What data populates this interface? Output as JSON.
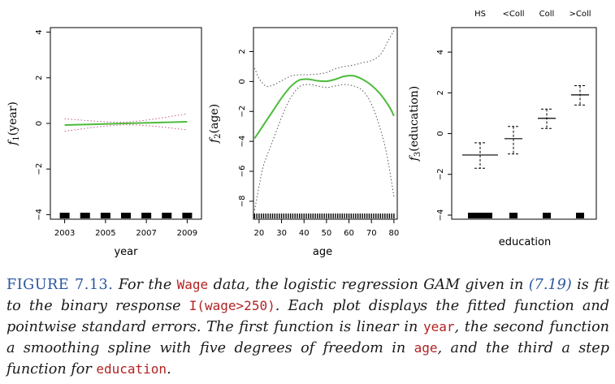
{
  "chart_data": [
    {
      "type": "line",
      "xlabel": "year",
      "ylabel": "f1(year)",
      "ylabel_base": "f",
      "ylabel_sub": "1",
      "ylabel_arg": "(year)",
      "xlim": [
        2002.3,
        2009.7
      ],
      "ylim": [
        -4.2,
        4.2
      ],
      "xticks": [
        2003,
        2005,
        2007,
        2009
      ],
      "xtick_labels": [
        "2003",
        "2005",
        "2007",
        "2009"
      ],
      "yticks": [
        -4,
        -2,
        0,
        2,
        4
      ],
      "ytick_labels": [
        "−4",
        "−2",
        "0",
        "2",
        "4"
      ],
      "fit": {
        "color": "#4cbb3a",
        "x": [
          2003,
          2009
        ],
        "y": [
          -0.07,
          0.07
        ]
      },
      "upper_band": {
        "x": [
          2003,
          2006,
          2009
        ],
        "y": [
          0.2,
          0.06,
          0.42
        ]
      },
      "lower_band": {
        "x": [
          2003,
          2006,
          2009
        ],
        "y": [
          -0.34,
          -0.06,
          -0.28
        ]
      },
      "rug": [
        2003,
        2004,
        2005,
        2006,
        2007,
        2008,
        2009
      ]
    },
    {
      "type": "line",
      "xlabel": "age",
      "ylabel": "f2(age)",
      "ylabel_base": "f",
      "ylabel_sub": "2",
      "ylabel_arg": "(age)",
      "xlim": [
        17.5,
        81.5
      ],
      "ylim": [
        -9.2,
        3.6
      ],
      "xticks": [
        20,
        30,
        40,
        50,
        60,
        70,
        80
      ],
      "xtick_labels": [
        "20",
        "30",
        "40",
        "50",
        "60",
        "70",
        "80"
      ],
      "yticks": [
        -8,
        -6,
        -4,
        -2,
        0,
        2
      ],
      "ytick_labels": [
        "−8",
        "−6",
        "−4",
        "−2",
        "0",
        "2"
      ],
      "fit": {
        "color": "#4cbb3a",
        "x": [
          18,
          22,
          26,
          30,
          34,
          38,
          42,
          46,
          50,
          54,
          58,
          62,
          66,
          70,
          74,
          78,
          80
        ],
        "y": [
          -3.8,
          -2.9,
          -2.0,
          -1.1,
          -0.35,
          0.1,
          0.15,
          0.05,
          0.02,
          0.15,
          0.35,
          0.38,
          0.15,
          -0.25,
          -0.85,
          -1.7,
          -2.3
        ]
      },
      "upper_band": {
        "x": [
          18,
          20,
          23,
          26,
          30,
          34,
          38,
          42,
          46,
          50,
          54,
          58,
          62,
          66,
          70,
          74,
          77,
          80
        ],
        "y": [
          0.9,
          0.2,
          -0.3,
          -0.25,
          0.05,
          0.35,
          0.45,
          0.45,
          0.5,
          0.6,
          0.85,
          1.0,
          1.1,
          1.25,
          1.4,
          1.8,
          2.6,
          3.4
        ]
      },
      "lower_band": {
        "x": [
          18,
          20,
          22,
          26,
          30,
          34,
          38,
          42,
          46,
          50,
          54,
          58,
          62,
          66,
          70,
          74,
          77,
          80
        ],
        "y": [
          -8.6,
          -7.0,
          -5.6,
          -4.0,
          -2.4,
          -1.1,
          -0.35,
          -0.2,
          -0.3,
          -0.4,
          -0.3,
          -0.2,
          -0.3,
          -0.6,
          -1.5,
          -3.2,
          -5.0,
          -7.7
        ]
      },
      "rug_range": [
        18,
        80
      ]
    },
    {
      "type": "scatter",
      "xlabel": "education",
      "ylabel": "f3(education)",
      "ylabel_base": "f",
      "ylabel_sub": "3",
      "ylabel_arg": "(education)",
      "ylim": [
        -4.2,
        5.2
      ],
      "yticks": [
        -4,
        -2,
        0,
        2,
        4
      ],
      "ytick_labels": [
        "−4",
        "−2",
        "0",
        "2",
        "4"
      ],
      "categories": [
        "HS",
        "<Coll",
        "Coll",
        ">Coll"
      ],
      "top_labels": [
        "HS",
        "<Coll",
        "Coll",
        ">Coll"
      ],
      "values": [
        -1.05,
        -0.25,
        0.75,
        1.9
      ],
      "upper": [
        -0.45,
        0.35,
        1.2,
        2.35
      ],
      "lower": [
        -1.7,
        -1.0,
        0.25,
        1.4
      ]
    }
  ],
  "caption": {
    "label": "FIGURE 7.13.",
    "part1": " For the ",
    "code1": "Wage",
    "part2": " data, the logistic regression GAM given in ",
    "ref": "(7.19)",
    "part3": " is fit to the binary response ",
    "code2": "I(wage>250)",
    "part4": ". Each plot displays the fitted function and pointwise standard errors. The first function is linear in ",
    "code3": "year",
    "part5": ", the second function a smoothing spline with five degrees of freedom in ",
    "code4": "age",
    "part6": ", and the third a step function for ",
    "code5": "education",
    "part7": "."
  }
}
